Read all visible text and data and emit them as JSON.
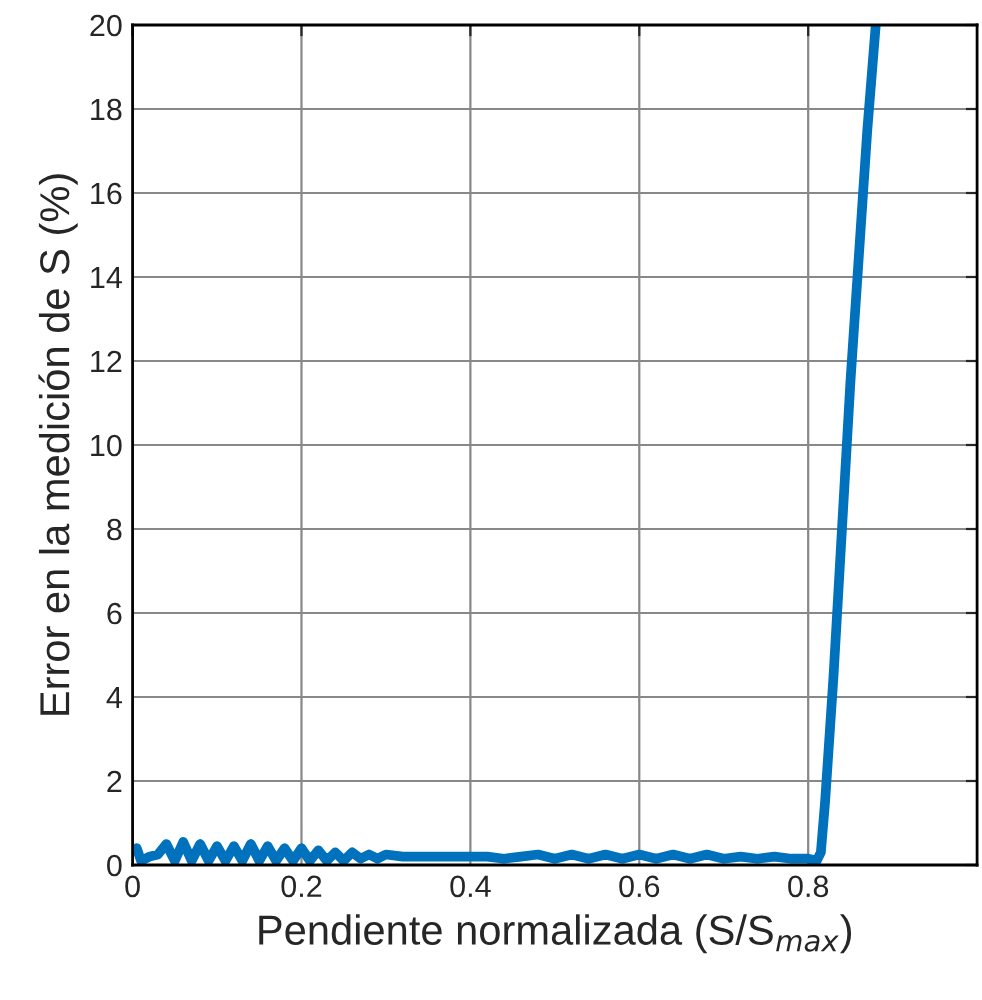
{
  "chart_data": {
    "type": "line",
    "xlabel": "Pendiente normalizada (S/S$_{max}$)",
    "ylabel": "Error en la medición de S (%)",
    "xlim": [
      0,
      1
    ],
    "ylim": [
      0,
      20
    ],
    "xticks": [
      0,
      0.2,
      0.4,
      0.6,
      0.8
    ],
    "yticks": [
      0,
      2,
      4,
      6,
      8,
      10,
      12,
      14,
      16,
      18,
      20
    ],
    "grid": true,
    "marker": "none",
    "line_style": "solid",
    "series": [
      {
        "color": "#0072bd",
        "x": [
          0.005,
          0.01,
          0.02,
          0.03,
          0.04,
          0.05,
          0.06,
          0.07,
          0.08,
          0.09,
          0.1,
          0.11,
          0.12,
          0.13,
          0.14,
          0.15,
          0.16,
          0.17,
          0.18,
          0.19,
          0.2,
          0.21,
          0.22,
          0.23,
          0.24,
          0.25,
          0.26,
          0.27,
          0.28,
          0.29,
          0.3,
          0.32,
          0.34,
          0.36,
          0.38,
          0.4,
          0.42,
          0.44,
          0.46,
          0.48,
          0.5,
          0.52,
          0.54,
          0.56,
          0.58,
          0.6,
          0.62,
          0.64,
          0.66,
          0.68,
          0.7,
          0.72,
          0.74,
          0.76,
          0.78,
          0.8,
          0.81,
          0.815,
          0.82,
          0.83,
          0.84,
          0.85,
          0.86,
          0.87,
          0.88
        ],
        "values": [
          0.4,
          0.1,
          0.2,
          0.25,
          0.5,
          0.1,
          0.55,
          0.1,
          0.5,
          0.1,
          0.45,
          0.1,
          0.45,
          0.1,
          0.5,
          0.1,
          0.45,
          0.1,
          0.4,
          0.1,
          0.4,
          0.1,
          0.35,
          0.1,
          0.3,
          0.1,
          0.3,
          0.15,
          0.25,
          0.15,
          0.25,
          0.2,
          0.2,
          0.2,
          0.2,
          0.2,
          0.2,
          0.15,
          0.2,
          0.25,
          0.15,
          0.25,
          0.15,
          0.25,
          0.15,
          0.25,
          0.15,
          0.25,
          0.15,
          0.25,
          0.15,
          0.2,
          0.15,
          0.2,
          0.15,
          0.15,
          0.1,
          0.3,
          1.5,
          4.5,
          8.0,
          11.5,
          14.5,
          17.5,
          20
        ]
      }
    ]
  }
}
